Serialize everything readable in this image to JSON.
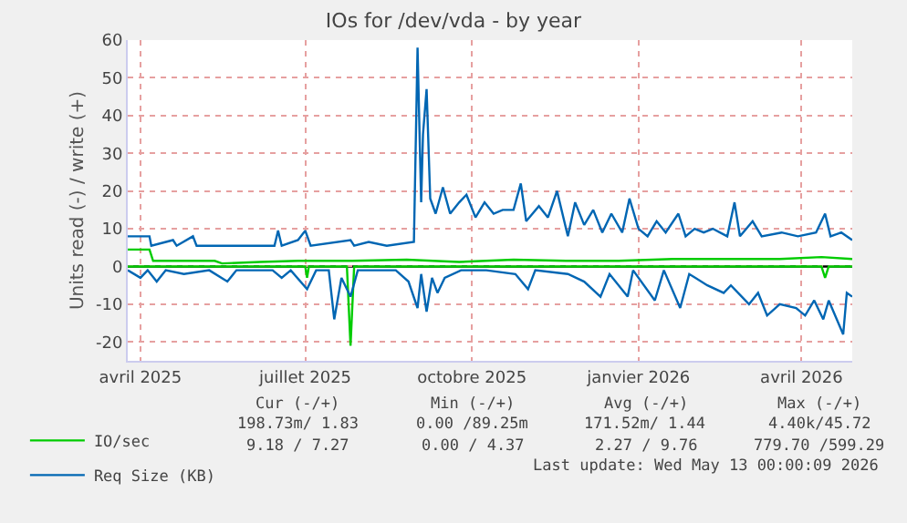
{
  "chart_data": {
    "type": "line",
    "title": "IOs for /dev/vda - by year",
    "ylabel": "Units read (-) / write (+)",
    "xlim": [
      "2025-03-25",
      "2026-04-29"
    ],
    "xticks": [
      {
        "value": "2025-04-01",
        "label": "avril 2025"
      },
      {
        "value": "2025-07-01",
        "label": "juillet 2025"
      },
      {
        "value": "2025-10-01",
        "label": "octobre 2025"
      },
      {
        "value": "2026-01-01",
        "label": "janvier 2026"
      },
      {
        "value": "2026-04-01",
        "label": "avril 2026"
      }
    ],
    "ylim": [
      -25,
      60
    ],
    "yticks": [
      -20,
      -10,
      0,
      10,
      20,
      30,
      40,
      50,
      60
    ],
    "grid": true,
    "legend": "bottom",
    "marker": "none",
    "line_style": "solid",
    "ref_lines": [
      {
        "axis": "y",
        "value": 0,
        "color": "#000000"
      }
    ],
    "series": [
      {
        "name": "IO/sec",
        "color": "#00cc00",
        "x": [
          "2025-03-25",
          "2025-04-06",
          "2025-04-08",
          "2025-05-12",
          "2025-05-16",
          "2025-06-06",
          "2025-06-27",
          "2025-07-27",
          "2025-08-26",
          "2025-09-24",
          "2025-10-24",
          "2025-11-22",
          "2025-12-21",
          "2026-01-20",
          "2026-02-18",
          "2026-03-20",
          "2026-04-12",
          "2026-04-29"
        ],
        "values": [
          4.5,
          4.5,
          1.5,
          1.5,
          0.8,
          1.2,
          1.5,
          1.5,
          1.8,
          1.2,
          1.8,
          1.5,
          1.5,
          2,
          2,
          2,
          2.5,
          2
        ]
      },
      {
        "color": "#00cc00",
        "x": [
          "2025-03-25",
          "2025-07-01",
          "2025-07-02",
          "2025-07-03",
          "2025-07-24",
          "2025-07-26",
          "2025-07-28",
          "2026-04-12",
          "2026-04-14",
          "2026-04-16",
          "2026-04-29"
        ],
        "values": [
          0,
          0,
          -3,
          0,
          0,
          -21,
          0,
          0,
          -3,
          0,
          0
        ]
      },
      {
        "name": "Req Size (KB)",
        "color": "#0066b3",
        "x": [
          "2025-03-25",
          "2025-04-06",
          "2025-04-07",
          "2025-04-19",
          "2025-04-21",
          "2025-04-30",
          "2025-05-02",
          "2025-06-01",
          "2025-06-14",
          "2025-06-16",
          "2025-06-18",
          "2025-06-27",
          "2025-07-01",
          "2025-07-04",
          "2025-07-26",
          "2025-07-28",
          "2025-08-05",
          "2025-08-15",
          "2025-08-30",
          "2025-09-01",
          "2025-09-03",
          "2025-09-04",
          "2025-09-06",
          "2025-09-08",
          "2025-09-11",
          "2025-09-15",
          "2025-09-19",
          "2025-09-24",
          "2025-09-28",
          "2025-10-03",
          "2025-10-08",
          "2025-10-13",
          "2025-10-18",
          "2025-10-24",
          "2025-10-28",
          "2025-10-31",
          "2025-11-07",
          "2025-11-12",
          "2025-11-17",
          "2025-11-23",
          "2025-11-27",
          "2025-12-02",
          "2025-12-07",
          "2025-12-12",
          "2025-12-17",
          "2025-12-23",
          "2025-12-27",
          "2026-01-01",
          "2026-01-06",
          "2026-01-11",
          "2026-01-16",
          "2026-01-23",
          "2026-01-27",
          "2026-02-01",
          "2026-02-06",
          "2026-02-11",
          "2026-02-19",
          "2026-02-23",
          "2026-02-26",
          "2026-03-05",
          "2026-03-10",
          "2026-03-21",
          "2026-03-30",
          "2026-04-09",
          "2026-04-14",
          "2026-04-17",
          "2026-04-23",
          "2026-04-29"
        ],
        "values": [
          8,
          8,
          5.5,
          7,
          5.5,
          8,
          5.5,
          5.5,
          5.5,
          9.5,
          5.5,
          7,
          9.5,
          5.5,
          7,
          5.5,
          6.5,
          5.5,
          6.5,
          58,
          17,
          35,
          47,
          18,
          14,
          21,
          14,
          17,
          19,
          13,
          17,
          14,
          15,
          15,
          22,
          12,
          16,
          13,
          20,
          8,
          17,
          11,
          15,
          9,
          14,
          9,
          18,
          10,
          8,
          12,
          9,
          14,
          8,
          10,
          9,
          10,
          8,
          17,
          8,
          12,
          8,
          9,
          8,
          9,
          14,
          8,
          9,
          7
        ]
      },
      {
        "color": "#0066b3",
        "x": [
          "2025-03-25",
          "2025-04-01",
          "2025-04-05",
          "2025-04-10",
          "2025-04-15",
          "2025-04-25",
          "2025-05-09",
          "2025-05-19",
          "2025-05-24",
          "2025-06-13",
          "2025-06-18",
          "2025-06-23",
          "2025-07-02",
          "2025-07-07",
          "2025-07-14",
          "2025-07-17",
          "2025-07-21",
          "2025-07-26",
          "2025-07-30",
          "2025-08-20",
          "2025-08-27",
          "2025-09-01",
          "2025-09-03",
          "2025-09-06",
          "2025-09-09",
          "2025-09-12",
          "2025-09-16",
          "2025-09-25",
          "2025-10-09",
          "2025-10-25",
          "2025-11-01",
          "2025-11-05",
          "2025-11-23",
          "2025-12-02",
          "2025-12-11",
          "2025-12-16",
          "2025-12-26",
          "2025-12-29",
          "2026-01-10",
          "2026-01-15",
          "2026-01-24",
          "2026-01-29",
          "2026-02-08",
          "2026-02-17",
          "2026-02-21",
          "2026-03-03",
          "2026-03-08",
          "2026-03-13",
          "2026-03-20",
          "2026-03-29",
          "2026-04-03",
          "2026-04-08",
          "2026-04-13",
          "2026-04-16",
          "2026-04-24",
          "2026-04-26",
          "2026-04-29"
        ],
        "values": [
          -1,
          -3,
          -1,
          -4,
          -1,
          -2,
          -1,
          -4,
          -1,
          -1,
          -3,
          -1,
          -6,
          -1,
          -1,
          -14,
          -3,
          -8,
          -1,
          -1,
          -4,
          -11,
          -2,
          -12,
          -3,
          -7,
          -3,
          -1,
          -1,
          -2,
          -6,
          -1,
          -2,
          -4,
          -8,
          -2,
          -8,
          -1,
          -9,
          -1,
          -11,
          -2,
          -5,
          -7,
          -5,
          -10,
          -7,
          -13,
          -10,
          -11,
          -13,
          -9,
          -14,
          -9,
          -18,
          -7,
          -8
        ]
      }
    ],
    "annotations": [
      "Cur (-/+)",
      "Min (-/+)",
      "Avg (-/+)",
      "Max (-/+)",
      "198.73m/ 1.83",
      "0.00 /89.25m",
      "171.52m/ 1.44",
      "4.40k/45.72",
      "9.18 / 7.27",
      "0.00 / 4.37",
      "2.27 / 9.76",
      "779.70 /599.29",
      "Last update: Wed May 13 00:00:09 2026"
    ]
  }
}
